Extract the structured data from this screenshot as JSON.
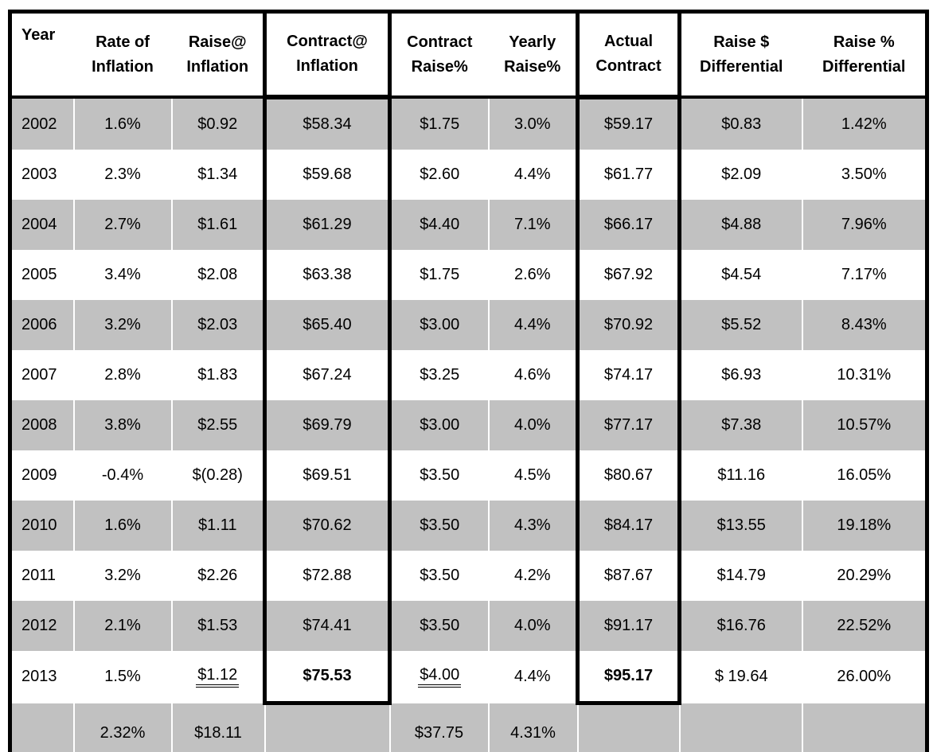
{
  "colors": {
    "stripe_gray": "#c1c1c1",
    "border_black": "#000000",
    "grid_separator_white": "#ffffff",
    "background": "#ffffff",
    "text": "#000000"
  },
  "table": {
    "column_keys": [
      "year",
      "rate-of-inflation",
      "raise-at-inflation",
      "contract-at-inflation",
      "contract-raise-pct",
      "yearly-raise-pct",
      "actual-contract",
      "raise-dollar-differential",
      "raise-pct-differential"
    ],
    "header_display": [
      "Year",
      "Rate of\nInflation",
      "Raise@\nInflation",
      "Contract@\nInflation",
      "Contract\nRaise%",
      "Yearly\nRaise%",
      "Actual\nContract",
      "Raise $\nDifferential",
      "Raise %\nDifferential"
    ],
    "bold_cells": [
      [
        11,
        3
      ],
      [
        11,
        6
      ]
    ],
    "double_underline_cells": [
      [
        11,
        2
      ],
      [
        11,
        4
      ]
    ]
  },
  "chart_data": {
    "type": "table",
    "title": "",
    "columns": [
      "Year",
      "Rate of Inflation",
      "Raise@ Inflation",
      "Contract@ Inflation",
      "Contract Raise%",
      "Yearly Raise%",
      "Actual Contract",
      "Raise $ Differential",
      "Raise % Differential"
    ],
    "rows": [
      [
        "2002",
        "1.6%",
        "$0.92",
        "$58.34",
        "$1.75",
        "3.0%",
        "$59.17",
        "$0.83",
        "1.42%"
      ],
      [
        "2003",
        "2.3%",
        "$1.34",
        "$59.68",
        "$2.60",
        "4.4%",
        "$61.77",
        "$2.09",
        "3.50%"
      ],
      [
        "2004",
        "2.7%",
        "$1.61",
        "$61.29",
        "$4.40",
        "7.1%",
        "$66.17",
        "$4.88",
        "7.96%"
      ],
      [
        "2005",
        "3.4%",
        "$2.08",
        "$63.38",
        "$1.75",
        "2.6%",
        "$67.92",
        "$4.54",
        "7.17%"
      ],
      [
        "2006",
        "3.2%",
        "$2.03",
        "$65.40",
        "$3.00",
        "4.4%",
        "$70.92",
        "$5.52",
        "8.43%"
      ],
      [
        "2007",
        "2.8%",
        "$1.83",
        "$67.24",
        "$3.25",
        "4.6%",
        "$74.17",
        "$6.93",
        "10.31%"
      ],
      [
        "2008",
        "3.8%",
        "$2.55",
        "$69.79",
        "$3.00",
        "4.0%",
        "$77.17",
        "$7.38",
        "10.57%"
      ],
      [
        "2009",
        "-0.4%",
        "$(0.28)",
        "$69.51",
        "$3.50",
        "4.5%",
        "$80.67",
        "$11.16",
        "16.05%"
      ],
      [
        "2010",
        "1.6%",
        "$1.11",
        "$70.62",
        "$3.50",
        "4.3%",
        "$84.17",
        "$13.55",
        "19.18%"
      ],
      [
        "2011",
        "3.2%",
        "$2.26",
        "$72.88",
        "$3.50",
        "4.2%",
        "$87.67",
        "$14.79",
        "20.29%"
      ],
      [
        "2012",
        "2.1%",
        "$1.53",
        "$74.41",
        "$3.50",
        "4.0%",
        "$91.17",
        "$16.76",
        "22.52%"
      ],
      [
        "2013",
        "1.5%",
        "$1.12",
        "$75.53",
        "$4.00",
        "4.4%",
        "$95.17",
        "$ 19.64",
        "26.00%"
      ]
    ],
    "totals_row": [
      "",
      "2.32%",
      "$18.11",
      "",
      "$37.75",
      "4.31%",
      "",
      "",
      ""
    ],
    "highlighted_columns": [
      "Contract@ Inflation",
      "Actual Contract"
    ],
    "grid": true,
    "legend_position": "none"
  }
}
